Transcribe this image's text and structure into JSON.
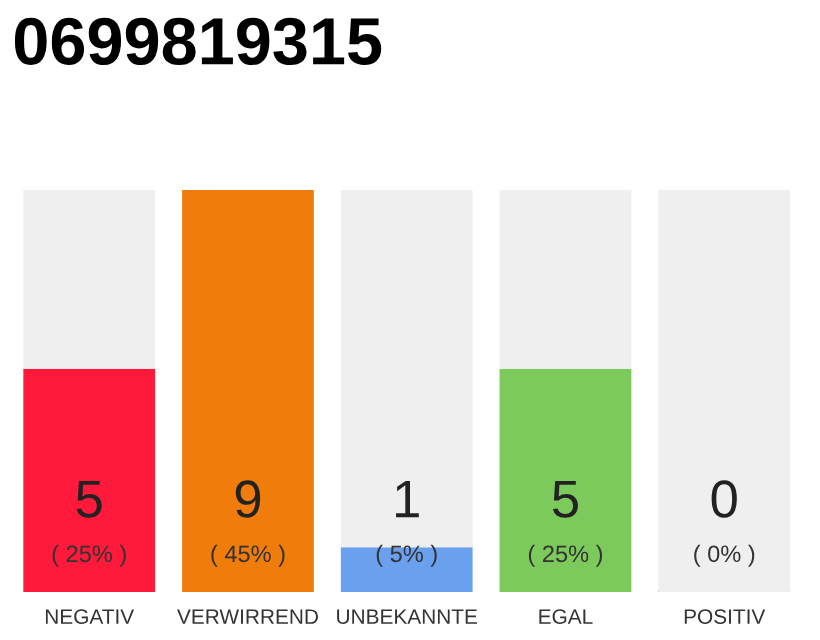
{
  "chart_data": {
    "type": "bar",
    "title": "0699819315",
    "stacked": true,
    "categories": [
      "NEGATIV",
      "VERWIRREND",
      "UNBEKANNTE",
      "EGAL",
      "POSITIV"
    ],
    "series": [
      {
        "colors": [
          "#ff1a3c",
          "#f07d0b",
          "#6aa0ee",
          "#7dca5c",
          "#1aa64b"
        ],
        "values": [
          5,
          9,
          1,
          5,
          0
        ],
        "value_labels": [
          "5",
          "9",
          "1",
          "5",
          "0"
        ]
      },
      {
        "color": "#efefef",
        "values": [
          4,
          0,
          8,
          4,
          9
        ]
      }
    ],
    "annotations": [
      "( 25% )",
      "( 45% )",
      "( 5% )",
      "( 25% )",
      "( 0% )"
    ],
    "grid": false,
    "legend": false
  }
}
